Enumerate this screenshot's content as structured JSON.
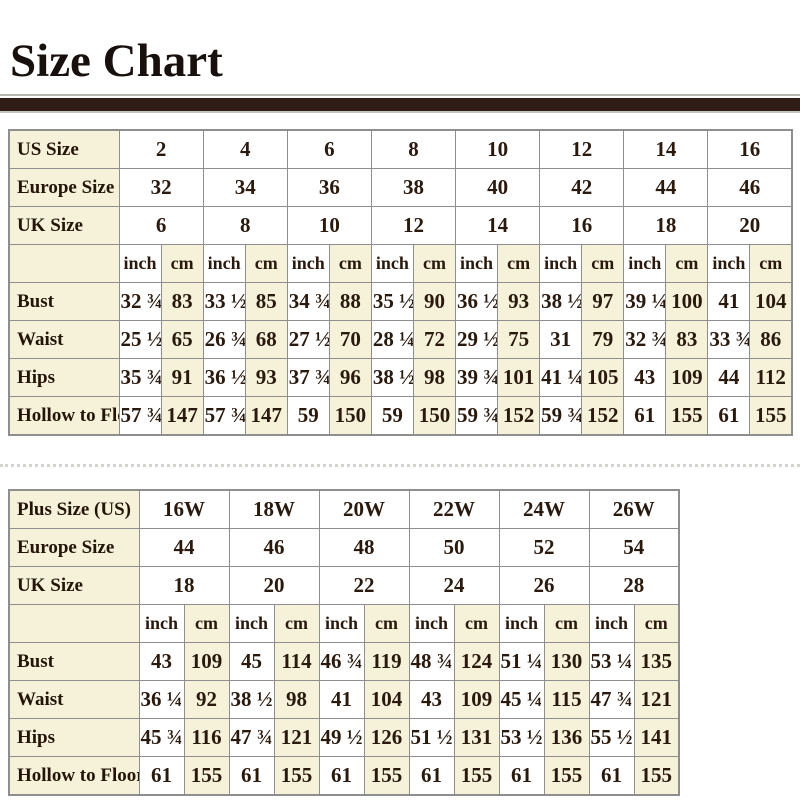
{
  "page": {
    "title": "Size Chart"
  },
  "colors": {
    "cream_cell": "#f6f2da",
    "table_border": "#8e8e8e",
    "title_bar_brown": "#2e1c15",
    "text_dark": "#241508",
    "dotted_line": "#d4d3d0"
  },
  "units": [
    "inch",
    "cm"
  ],
  "table1": {
    "size_rows": [
      {
        "label": "US Size",
        "values": [
          "2",
          "4",
          "6",
          "8",
          "10",
          "12",
          "14",
          "16"
        ]
      },
      {
        "label": "Europe Size",
        "values": [
          "32",
          "34",
          "36",
          "38",
          "40",
          "42",
          "44",
          "46"
        ]
      },
      {
        "label": "UK Size",
        "values": [
          "6",
          "8",
          "10",
          "12",
          "14",
          "16",
          "18",
          "20"
        ]
      }
    ],
    "measure_rows": [
      {
        "label": "Bust",
        "values": [
          "32 ¾",
          "83",
          "33 ½",
          "85",
          "34 ¾",
          "88",
          "35 ½",
          "90",
          "36 ½",
          "93",
          "38 ½",
          "97",
          "39 ¼",
          "100",
          "41",
          "104"
        ]
      },
      {
        "label": "Waist",
        "values": [
          "25 ½",
          "65",
          "26 ¾",
          "68",
          "27 ½",
          "70",
          "28 ¼",
          "72",
          "29 ½",
          "75",
          "31",
          "79",
          "32 ¾",
          "83",
          "33 ¾",
          "86"
        ]
      },
      {
        "label": "Hips",
        "values": [
          "35 ¾",
          "91",
          "36 ½",
          "93",
          "37 ¾",
          "96",
          "38 ½",
          "98",
          "39 ¾",
          "101",
          "41 ¼",
          "105",
          "43",
          "109",
          "44",
          "112"
        ]
      },
      {
        "label": "Hollow to Floor",
        "values": [
          "57 ¾",
          "147",
          "57 ¾",
          "147",
          "59",
          "150",
          "59",
          "150",
          "59 ¾",
          "152",
          "59 ¾",
          "152",
          "61",
          "155",
          "61",
          "155"
        ]
      }
    ]
  },
  "table2": {
    "size_rows": [
      {
        "label": "Plus Size (US)",
        "values": [
          "16W",
          "18W",
          "20W",
          "22W",
          "24W",
          "26W"
        ]
      },
      {
        "label": "Europe Size",
        "values": [
          "44",
          "46",
          "48",
          "50",
          "52",
          "54"
        ]
      },
      {
        "label": "UK Size",
        "values": [
          "18",
          "20",
          "22",
          "24",
          "26",
          "28"
        ]
      }
    ],
    "measure_rows": [
      {
        "label": "Bust",
        "values": [
          "43",
          "109",
          "45",
          "114",
          "46 ¾",
          "119",
          "48 ¾",
          "124",
          "51 ¼",
          "130",
          "53 ¼",
          "135"
        ]
      },
      {
        "label": "Waist",
        "values": [
          "36 ¼",
          "92",
          "38 ½",
          "98",
          "41",
          "104",
          "43",
          "109",
          "45 ¼",
          "115",
          "47 ¾",
          "121"
        ]
      },
      {
        "label": "Hips",
        "values": [
          "45 ¾",
          "116",
          "47 ¾",
          "121",
          "49 ½",
          "126",
          "51 ½",
          "131",
          "53 ½",
          "136",
          "55 ½",
          "141"
        ]
      },
      {
        "label": "Hollow to Floor",
        "values": [
          "61",
          "155",
          "61",
          "155",
          "61",
          "155",
          "61",
          "155",
          "61",
          "155",
          "61",
          "155"
        ]
      }
    ]
  }
}
